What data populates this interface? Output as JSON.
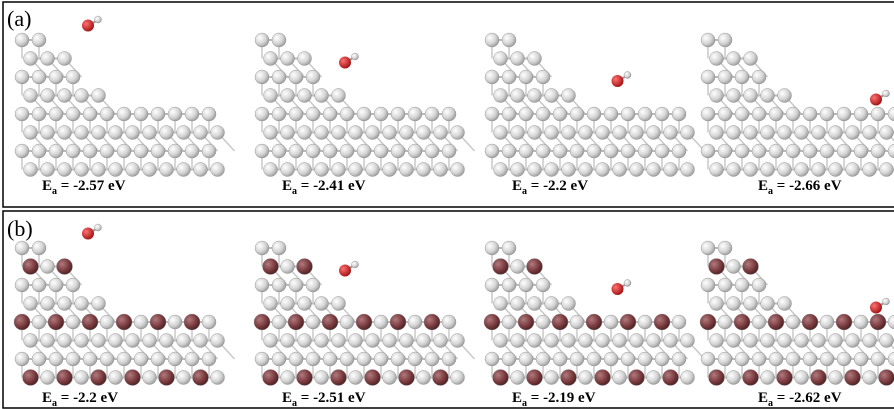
{
  "panels": [
    {
      "tag": "(a)",
      "structures": [
        {
          "symbol": "E",
          "sub": "a",
          "rest": " = -2.57 eV"
        },
        {
          "symbol": "E",
          "sub": "a",
          "rest": " = -2.41 eV"
        },
        {
          "symbol": "E",
          "sub": "a",
          "rest": " = -2.2 eV"
        },
        {
          "symbol": "E",
          "sub": "a",
          "rest": " = -2.66 eV"
        }
      ]
    },
    {
      "tag": "(b)",
      "structures": [
        {
          "symbol": "E",
          "sub": "a",
          "rest": " = -2.2 eV"
        },
        {
          "symbol": "E",
          "sub": "a",
          "rest": " = -2.51 eV"
        },
        {
          "symbol": "E",
          "sub": "a",
          "rest": " = -2.19 eV"
        },
        {
          "symbol": "E",
          "sub": "a",
          "rest": " = -2.62 eV"
        }
      ]
    }
  ]
}
